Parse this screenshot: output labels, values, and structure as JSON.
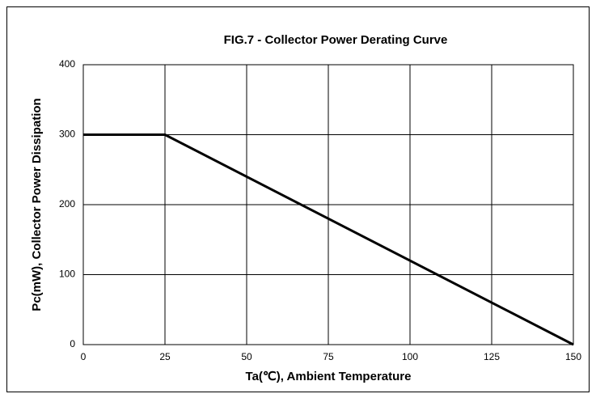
{
  "chart_data": {
    "type": "line",
    "title": "FIG.7 - Collector Power Derating Curve",
    "xlabel": "Ta(℃), Ambient Temperature",
    "ylabel": "Pc(mW), Collector Power Dissipation",
    "x": [
      0,
      25,
      150
    ],
    "series": [
      {
        "color": "#000000",
        "values": [
          300,
          300,
          0
        ]
      }
    ],
    "xlim": [
      0,
      150
    ],
    "xticks": [
      0,
      25,
      50,
      75,
      100,
      125,
      150
    ],
    "ylim": [
      0,
      400
    ],
    "yticks": [
      0,
      100,
      200,
      300,
      400
    ],
    "grid": true
  }
}
